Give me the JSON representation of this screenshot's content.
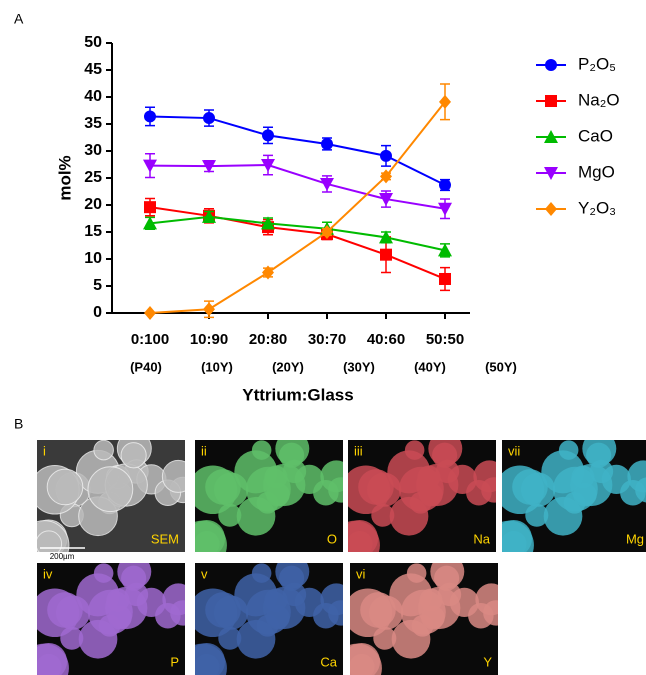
{
  "panel_labels": [
    "A",
    "B"
  ],
  "chart_data": {
    "type": "line",
    "y_label": "mol%",
    "x_label": "Yttrium:Glass",
    "categories": [
      "0:100",
      "10:90",
      "20:80",
      "30:70",
      "40:60",
      "50:50"
    ],
    "category_sublabels": [
      "(P40)",
      "(10Y)",
      "(20Y)",
      "(30Y)",
      "(40Y)",
      "(50Y)"
    ],
    "ylim": [
      0,
      50
    ],
    "yticks": [
      0,
      5,
      10,
      15,
      20,
      25,
      30,
      35,
      40,
      45,
      50
    ],
    "series": [
      {
        "name": "P₂O₅",
        "color": "#0000ff",
        "marker": "circle",
        "values": [
          36.4,
          36.1,
          32.9,
          31.3,
          29.1,
          23.7
        ],
        "errors": [
          1.7,
          1.5,
          1.5,
          1.1,
          1.9,
          1.0
        ]
      },
      {
        "name": "Na₂O",
        "color": "#ff0000",
        "marker": "square",
        "values": [
          19.6,
          18.0,
          15.9,
          14.6,
          10.8,
          6.3
        ],
        "errors": [
          1.6,
          1.3,
          1.4,
          1.0,
          3.3,
          2.1
        ]
      },
      {
        "name": "CaO",
        "color": "#00bb00",
        "marker": "triangle-up",
        "values": [
          16.6,
          17.8,
          16.6,
          15.6,
          14.0,
          11.6
        ],
        "errors": [
          1.1,
          1.0,
          1.0,
          1.2,
          1.0,
          1.2
        ]
      },
      {
        "name": "MgO",
        "color": "#9900ff",
        "marker": "triangle-down",
        "values": [
          27.3,
          27.2,
          27.4,
          23.9,
          21.1,
          19.3
        ],
        "errors": [
          2.2,
          1.0,
          1.8,
          1.5,
          1.5,
          1.8
        ]
      },
      {
        "name": "Y₂O₃",
        "color": "#ff8800",
        "marker": "diamond",
        "values": [
          0,
          0.7,
          7.5,
          15.0,
          25.3,
          39.1
        ],
        "errors": [
          0,
          1.5,
          0.8,
          0.6,
          0.6,
          3.3
        ]
      }
    ]
  },
  "micrographs": [
    {
      "label": "i",
      "element": "SEM",
      "color": "#bbbbbb"
    },
    {
      "label": "ii",
      "element": "O",
      "color": "#5fbf6a"
    },
    {
      "label": "iii",
      "element": "Na",
      "color": "#c94b55"
    },
    {
      "label": "vii",
      "element": "Mg",
      "color": "#3fb3c7"
    },
    {
      "label": "iv",
      "element": "P",
      "color": "#a06ad0"
    },
    {
      "label": "v",
      "element": "Ca",
      "color": "#3f63a8"
    },
    {
      "label": "vi",
      "element": "Y",
      "color": "#d98a84"
    }
  ],
  "scale_bar": "200µm"
}
